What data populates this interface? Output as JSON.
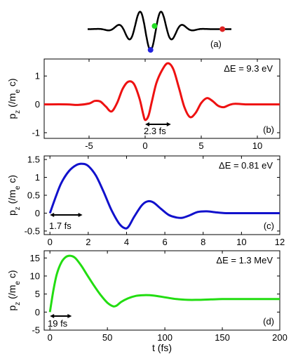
{
  "chart_data": [
    {
      "type": "line",
      "panel_label": "(a)",
      "description_series": [
        {
          "name": "",
          "color": "#000000"
        }
      ],
      "markers": [
        {
          "color": "#2222dd",
          "x": 0.0,
          "y": -1.0
        },
        {
          "color": "#22dd22",
          "x": 0.45,
          "y": 0.15
        },
        {
          "color": "#dd2222",
          "x": 8.0,
          "y": 0.0
        }
      ],
      "xlim": [
        -7,
        9
      ],
      "ylim": [
        -1.1,
        1.2
      ]
    },
    {
      "type": "line",
      "panel_label": "(b)",
      "annotation": "ΔE = 9.3 eV",
      "interval_label": "2.3 fs",
      "interval": [
        0,
        2.3
      ],
      "ylabel": "p_z (/m_e c)",
      "xlim": [
        -9,
        12
      ],
      "ylim": [
        -1.2,
        1.6
      ],
      "xticks": [
        -5,
        0,
        5,
        10
      ],
      "yticks": [
        -1,
        0,
        1
      ],
      "series": [
        {
          "name": "",
          "color": "#ee1111",
          "x": [
            -9,
            -7,
            -6,
            -5,
            -4.5,
            -4,
            -3.5,
            -3,
            -2.5,
            -2,
            -1.5,
            -1,
            -0.5,
            -0.2,
            0,
            0.3,
            0.6,
            1,
            1.5,
            2,
            2.5,
            3,
            3.5,
            4,
            4.5,
            5,
            5.5,
            6,
            6.5,
            7,
            7.5,
            8,
            9,
            10,
            11,
            12
          ],
          "y": [
            0,
            0,
            -0.02,
            0.03,
            0.12,
            0.1,
            -0.08,
            -0.25,
            0.05,
            0.55,
            0.8,
            0.72,
            0.2,
            -0.3,
            -0.55,
            -0.4,
            0.1,
            0.75,
            1.2,
            1.45,
            1.25,
            0.6,
            -0.1,
            -0.45,
            -0.3,
            0.05,
            0.22,
            0.12,
            -0.05,
            -0.1,
            -0.02,
            0.02,
            0.0,
            0.0,
            0.0,
            0.0
          ]
        }
      ]
    },
    {
      "type": "line",
      "panel_label": "(c)",
      "annotation": "ΔE = 0.81 eV",
      "interval_label": "1.7 fs",
      "interval": [
        0,
        1.7
      ],
      "ylabel": "p_z (/m_e c)",
      "xlim": [
        -0.3,
        12
      ],
      "ylim": [
        -0.6,
        1.6
      ],
      "xticks": [
        0,
        2,
        4,
        6,
        8,
        10,
        12
      ],
      "yticks": [
        -0.5,
        0,
        0.5,
        1,
        1.5
      ],
      "series": [
        {
          "name": "",
          "color": "#1111cc",
          "x": [
            0,
            0.3,
            0.6,
            1,
            1.4,
            1.7,
            2,
            2.4,
            2.8,
            3.2,
            3.6,
            3.9,
            4.1,
            4.4,
            4.8,
            5.1,
            5.4,
            5.8,
            6.2,
            6.6,
            6.9,
            7.3,
            7.7,
            8.2,
            8.7,
            9.2,
            10,
            11,
            12
          ],
          "y": [
            0,
            0.45,
            0.85,
            1.18,
            1.35,
            1.38,
            1.32,
            1.05,
            0.6,
            0.1,
            -0.28,
            -0.42,
            -0.38,
            -0.1,
            0.22,
            0.33,
            0.3,
            0.12,
            -0.05,
            -0.12,
            -0.13,
            -0.06,
            0.03,
            0.05,
            0.02,
            0.0,
            0.0,
            0.0,
            0.0
          ]
        }
      ]
    },
    {
      "type": "line",
      "panel_label": "(d)",
      "annotation": "ΔE = 1.3 MeV",
      "interval_label": "19 fs",
      "interval": [
        0,
        19
      ],
      "ylabel": "p_z (/m_e c)",
      "xlabel": "t (fs)",
      "xlim": [
        -5,
        200
      ],
      "ylim": [
        -5,
        17
      ],
      "xticks": [
        0,
        50,
        100,
        150,
        200
      ],
      "yticks": [
        -5,
        0,
        5,
        10,
        15
      ],
      "series": [
        {
          "name": "",
          "color": "#22dd11",
          "x": [
            0,
            3,
            6,
            10,
            14,
            18,
            22,
            27,
            32,
            38,
            44,
            50,
            55,
            58,
            62,
            68,
            75,
            82,
            90,
            100,
            110,
            120,
            130,
            140,
            150,
            170,
            200
          ],
          "y": [
            0,
            6,
            10.5,
            13.8,
            15.3,
            15.6,
            15,
            13,
            10.5,
            7.5,
            4.8,
            2.6,
            1.6,
            1.8,
            2.8,
            3.8,
            4.5,
            4.7,
            4.6,
            4.1,
            3.6,
            3.4,
            3.4,
            3.5,
            3.6,
            3.6,
            3.6
          ]
        }
      ]
    }
  ]
}
